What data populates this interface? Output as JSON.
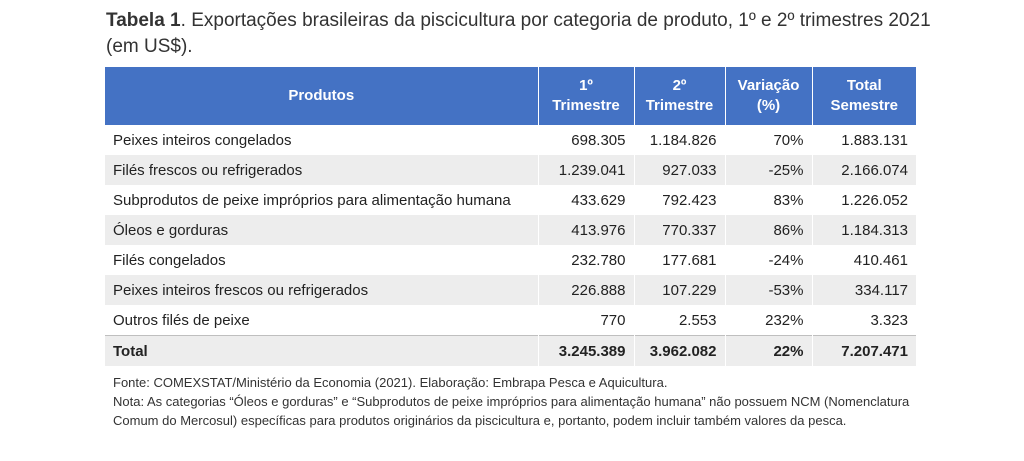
{
  "caption": {
    "label": "Tabela 1",
    "text": ". Exportações brasileiras da piscicultura por categoria de produto, 1º e 2º trimestres 2021 (em US$)."
  },
  "table": {
    "headers": {
      "produtos": "Produtos",
      "t1_line1": "1º",
      "t1_line2": "Trimestre",
      "t2_line1": "2º",
      "t2_line2": "Trimestre",
      "var_line1": "Variação",
      "var_line2": "(%)",
      "tot_line1": "Total",
      "tot_line2": "Semestre"
    },
    "rows": [
      {
        "produto": "Peixes inteiros congelados",
        "t1": "698.305",
        "t2": "1.184.826",
        "variacao": "70%",
        "total": "1.883.131"
      },
      {
        "produto": "Filés frescos ou refrigerados",
        "t1": "1.239.041",
        "t2": "927.033",
        "variacao": "-25%",
        "total": "2.166.074"
      },
      {
        "produto": "Subprodutos de peixe impróprios para alimentação humana",
        "t1": "433.629",
        "t2": "792.423",
        "variacao": "83%",
        "total": "1.226.052"
      },
      {
        "produto": "Óleos e gorduras",
        "t1": "413.976",
        "t2": "770.337",
        "variacao": "86%",
        "total": "1.184.313"
      },
      {
        "produto": "Filés congelados",
        "t1": "232.780",
        "t2": "177.681",
        "variacao": "-24%",
        "total": "410.461"
      },
      {
        "produto": "Peixes inteiros frescos ou refrigerados",
        "t1": "226.888",
        "t2": "107.229",
        "variacao": "-53%",
        "total": "334.117"
      },
      {
        "produto": "Outros filés de peixe",
        "t1": "770",
        "t2": "2.553",
        "variacao": "232%",
        "total": "3.323"
      }
    ],
    "total_row": {
      "produto": "Total",
      "t1": "3.245.389",
      "t2": "3.962.082",
      "variacao": "22%",
      "total": "7.207.471"
    }
  },
  "notes": {
    "fonte": "Fonte: COMEXSTAT/Ministério da Economia (2021). Elaboração: Embrapa Pesca e Aquicultura.",
    "nota": "Nota: As categorias “Óleos e gorduras” e “Subprodutos de peixe impróprios para alimentação humana” não possuem NCM (Nomenclatura Comum do Mercosul) específicas para produtos originários da piscicultura e, portanto, podem incluir também valores da pesca."
  },
  "colors": {
    "header_bg": "#4472c4",
    "header_text": "#ffffff",
    "stripe": "#ededed"
  }
}
